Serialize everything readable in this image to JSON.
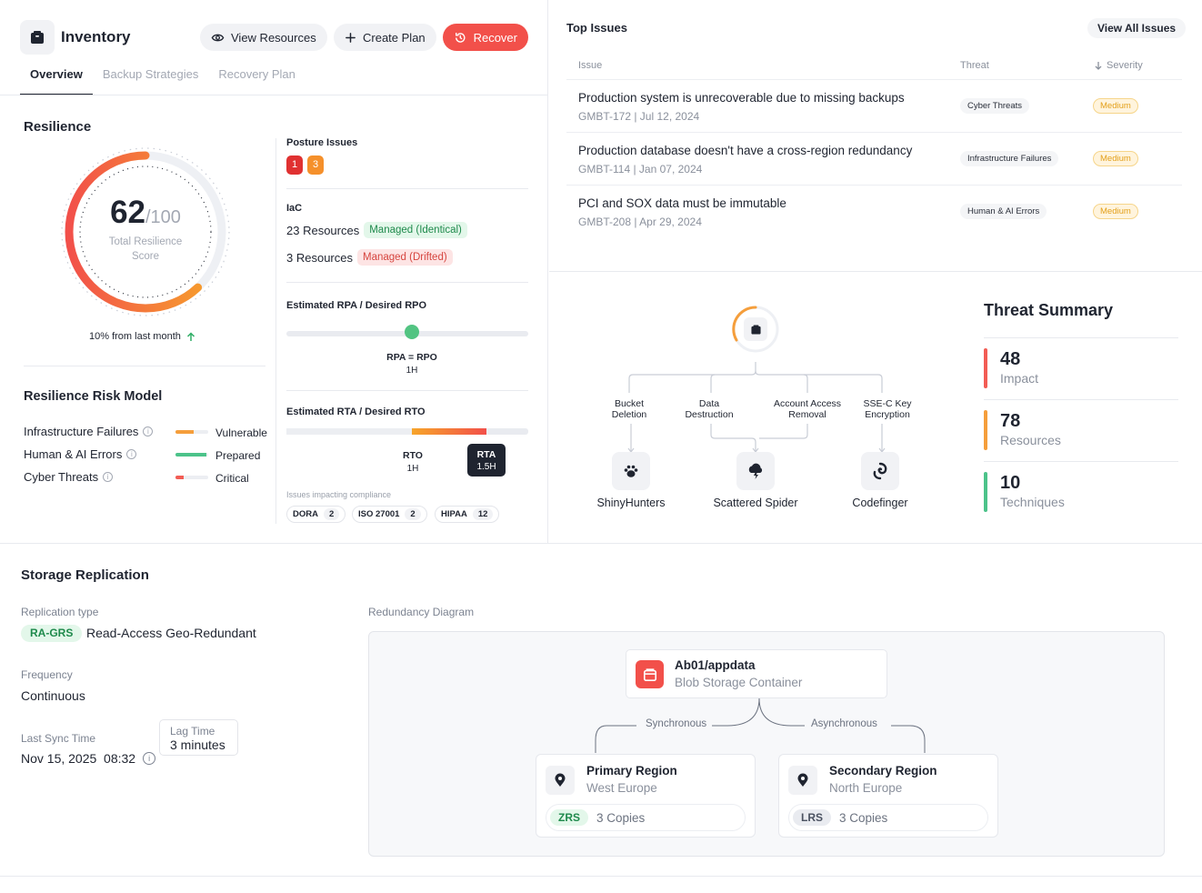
{
  "header": {
    "app_title": "Inventory",
    "view_resources": "View Resources",
    "create_plan": "Create Plan",
    "recover": "Recover",
    "tabs": [
      "Overview",
      "Backup Strategies",
      "Recovery Plan"
    ]
  },
  "resilience": {
    "title": "Resilience",
    "score": "62",
    "score_max": "/100",
    "score_caption_1": "Total Resilience",
    "score_caption_2": "Score",
    "score_fraction": 0.62,
    "trend": "10% from last month",
    "posture_title": "Posture Issues",
    "posture_counts": [
      "1",
      "3"
    ],
    "iac_title": "IaC",
    "iac_rows": [
      {
        "count": "23 Resources",
        "status": "Managed (Identical)"
      },
      {
        "count": "3 Resources",
        "status": "Managed (Drifted)"
      }
    ],
    "rpo_title": "Estimated RPA / Desired RPO",
    "rpo_label": "RPA = RPO",
    "rpo_value": "1H",
    "rto_title": "Estimated RTA / Desired RTO",
    "rto_label": "RTO",
    "rto_value": "1H",
    "rta_label": "RTA",
    "rta_value": "1.5H",
    "compliance_title": "Issues impacting compliance",
    "compliance": [
      {
        "name": "DORA",
        "count": "2"
      },
      {
        "name": "ISO 27001",
        "count": "2"
      },
      {
        "name": "HIPAA",
        "count": "12"
      }
    ]
  },
  "risk_model": {
    "title": "Resilience Risk Model",
    "rows": [
      {
        "name": "Infrastructure Failures",
        "status": "Vulnerable",
        "color": "#f59e3b",
        "level": 0.55
      },
      {
        "name": "Human & AI Errors",
        "status": "Prepared",
        "color": "#4cc38a",
        "level": 0.95
      },
      {
        "name": "Cyber Threats",
        "status": "Critical",
        "color": "#f25c54",
        "level": 0.25
      }
    ]
  },
  "issues": {
    "title": "Top Issues",
    "view_all": "View All Issues",
    "col_issue": "Issue",
    "col_threat": "Threat",
    "col_severity": "Severity",
    "rows": [
      {
        "title": "Production system is unrecoverable due to missing backups",
        "meta": "GMBT-172 | Jul 12, 2024",
        "threat": "Cyber Threats",
        "severity": "Medium"
      },
      {
        "title": "Production database doesn't have a cross-region redundancy",
        "meta": "GMBT-114 | Jan 07, 2024",
        "threat": "Infrastructure Failures",
        "severity": "Medium"
      },
      {
        "title": "PCI and SOX data must be immutable",
        "meta": "GMBT-208 | Apr 29, 2024",
        "threat": "Human & AI Errors",
        "severity": "Medium"
      }
    ]
  },
  "threat_tree": {
    "techniques": [
      {
        "line1": "Bucket",
        "line2": "Deletion"
      },
      {
        "line1": "Data",
        "line2": "Destruction"
      },
      {
        "line1": "Account Access",
        "line2": "Removal"
      },
      {
        "line1": "SSE-C Key",
        "line2": "Encryption"
      }
    ],
    "actors": [
      "ShinyHunters",
      "Scattered Spider",
      "Codefinger"
    ]
  },
  "threat_summary": {
    "title": "Threat Summary",
    "items": [
      {
        "value": "48",
        "label": "Impact",
        "color": "#f25c54"
      },
      {
        "value": "78",
        "label": "Resources",
        "color": "#f59e3b"
      },
      {
        "value": "10",
        "label": "Techniques",
        "color": "#4cc38a"
      }
    ]
  },
  "storage": {
    "title": "Storage Replication",
    "replication_type_label": "Replication type",
    "replication_tag": "RA-GRS",
    "replication_desc": "Read-Access Geo-Redundant",
    "frequency_label": "Frequency",
    "frequency_value": "Continuous",
    "last_sync_label": "Last Sync Time",
    "last_sync_value": "Nov 15, 2025  08:32",
    "lag_label": "Lag Time",
    "lag_value": "3 minutes",
    "diagram_label": "Redundancy Diagram",
    "container_name": "Ab01/appdata",
    "container_type": "Blob Storage Container",
    "sync_label": "Synchronous",
    "async_label": "Asynchronous",
    "primary": {
      "title": "Primary Region",
      "region": "West Europe",
      "tag": "ZRS",
      "copies": "3 Copies"
    },
    "secondary": {
      "title": "Secondary Region",
      "region": "North Europe",
      "tag": "LRS",
      "copies": "3 Copies"
    }
  }
}
